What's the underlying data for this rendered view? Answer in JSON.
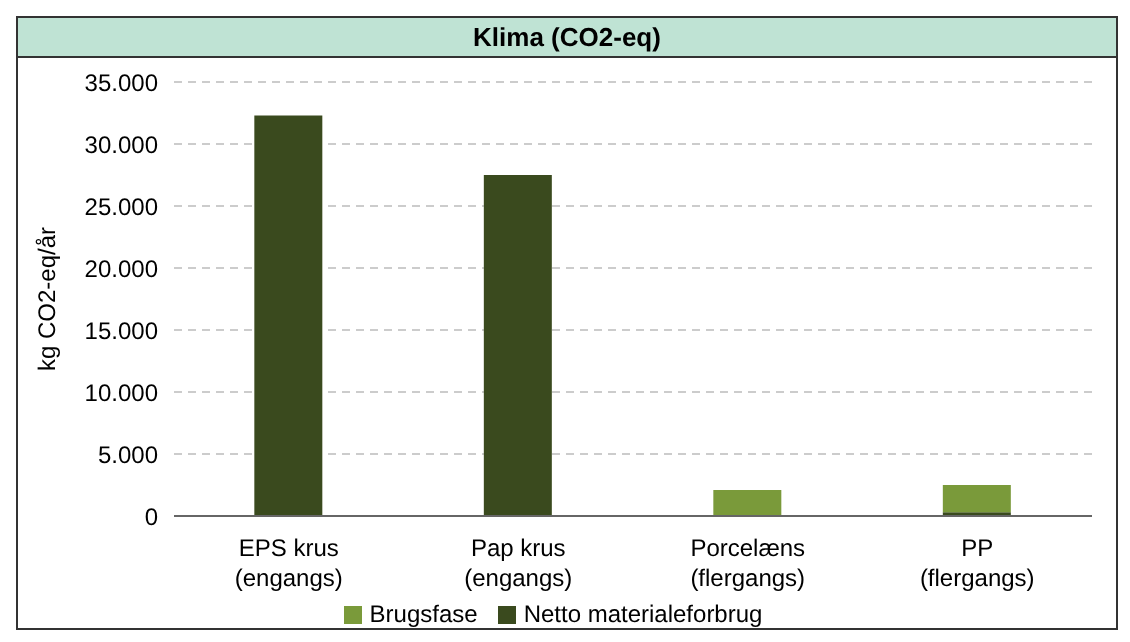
{
  "chart_data": {
    "type": "bar",
    "title": "Klima (CO2-eq)",
    "ylabel": "kg CO2-eq/år",
    "categories": [
      "EPS krus\n(engangs)",
      "Pap krus\n(engangs)",
      "Porcelæns\n(flergangs)",
      "PP\n(flergangs)"
    ],
    "stacked": true,
    "ylim": [
      0,
      35000
    ],
    "yticks": [
      {
        "value": 0,
        "label": "0"
      },
      {
        "value": 5000,
        "label": "5.000"
      },
      {
        "value": 10000,
        "label": "10.000"
      },
      {
        "value": 15000,
        "label": "15.000"
      },
      {
        "value": 20000,
        "label": "20.000"
      },
      {
        "value": 25000,
        "label": "25.000"
      },
      {
        "value": 30000,
        "label": "30.000"
      },
      {
        "value": 35000,
        "label": "35.000"
      }
    ],
    "grid": "y",
    "legend": "bottom",
    "series": [
      {
        "name": "Netto materialeforbrug",
        "color": "#3a4a1e",
        "values": [
          32300,
          27500,
          0,
          300
        ]
      },
      {
        "name": "Brugsfase",
        "color": "#7a9a3a",
        "values": [
          0,
          0,
          2100,
          2200
        ]
      }
    ]
  }
}
